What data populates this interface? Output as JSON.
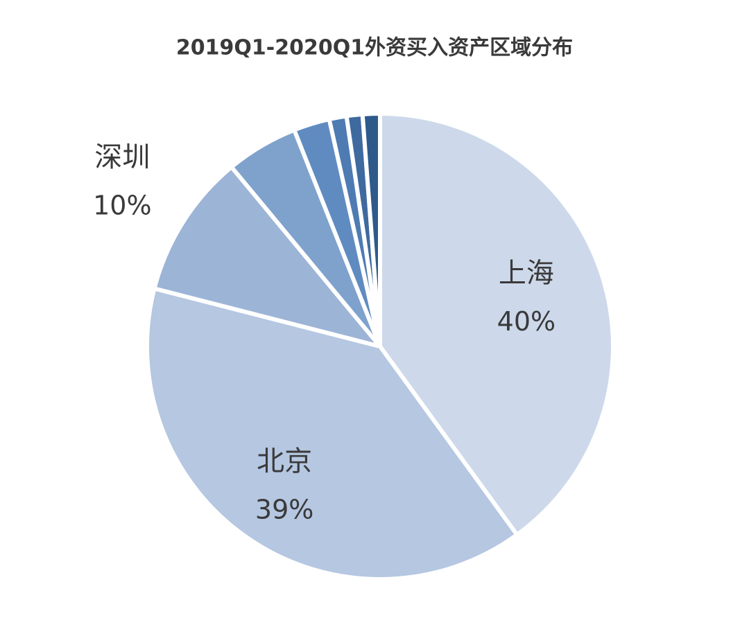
{
  "chart_data": {
    "type": "pie",
    "title": "2019Q1-2020Q1外资买入资产区域分布",
    "categories": [
      "上海",
      "北京",
      "深圳",
      null,
      null,
      null,
      null,
      null
    ],
    "values": [
      40,
      39,
      10,
      5,
      2.5,
      1.2,
      1.1,
      1.2
    ],
    "value_labels": [
      "40%",
      "39%",
      "10%",
      null,
      null,
      null,
      null,
      null
    ],
    "colors": [
      "#cdd9ea",
      "#b5c7e1",
      "#9cb4d6",
      "#7fa2cd",
      "#5f8bc0",
      "#4e7bb2",
      "#3f6a9f",
      "#2e5a8b"
    ]
  }
}
